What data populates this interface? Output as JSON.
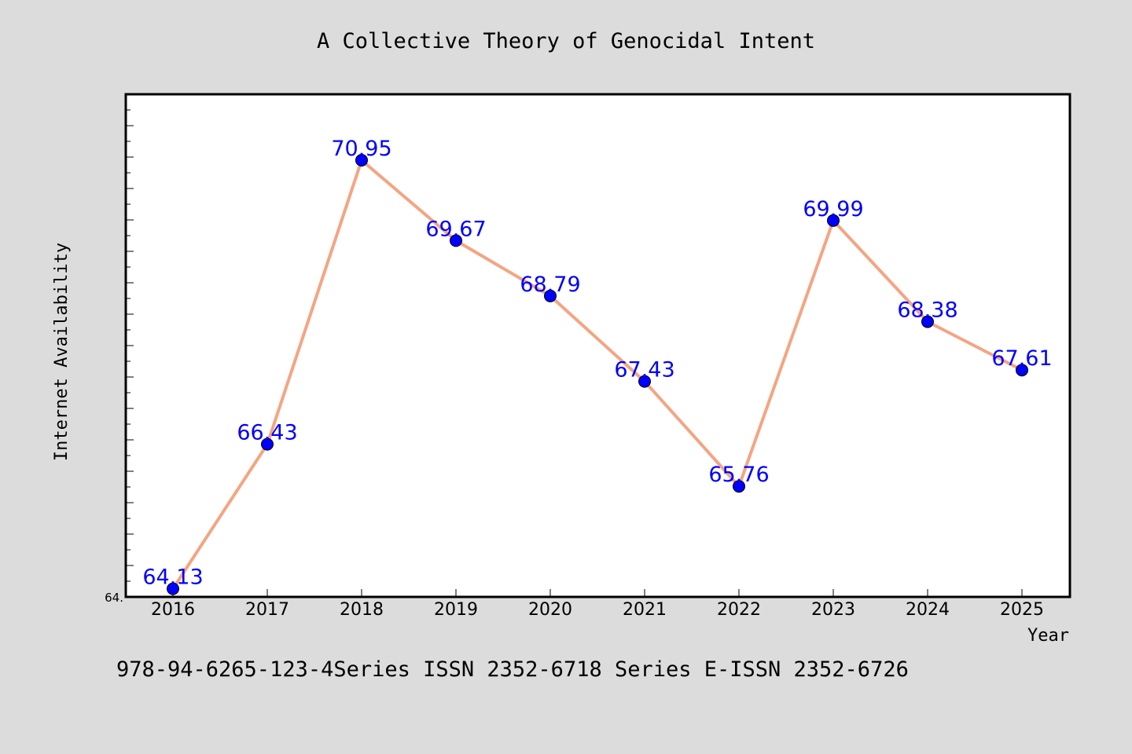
{
  "footer_text": "978-94-6265-123-4Series ISSN 2352-6718 Series E-ISSN 2352-6726",
  "chart_data": {
    "type": "line",
    "title": "A Collective Theory of Genocidal Intent",
    "xlabel": "Year",
    "ylabel": "Internet Availability",
    "categories": [
      "2016",
      "2017",
      "2018",
      "2019",
      "2020",
      "2021",
      "2022",
      "2023",
      "2024",
      "2025"
    ],
    "series": [
      {
        "values": [
          64.13,
          66.43,
          70.95,
          69.67,
          68.79,
          67.43,
          65.76,
          69.99,
          68.38,
          67.61
        ]
      }
    ],
    "data_labels": [
      "64.13",
      "66.43",
      "70.95",
      "69.67",
      "68.79",
      "67.43",
      "65.76",
      "69.99",
      "68.38",
      "67.61"
    ],
    "ytick_labels": [
      "64."
    ],
    "ylim": [
      64.0,
      72.0
    ],
    "grid": false,
    "line_color": "#f4a582",
    "marker_color": "#0000ff",
    "label_color": "#0000ff",
    "background_color": "#dcdcdc",
    "plot_background_color": "#ffffff"
  }
}
